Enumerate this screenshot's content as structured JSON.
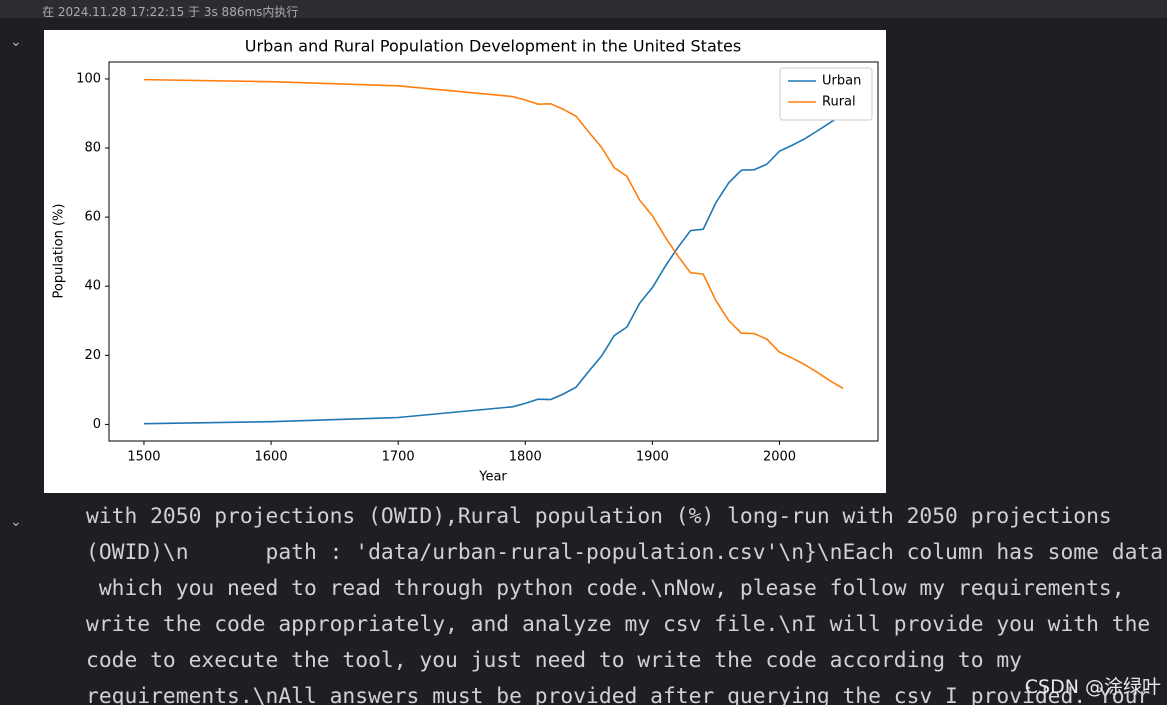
{
  "header": {
    "run_info": "在 2024.11.28 17:22:15 于 3s 886ms内执行"
  },
  "chart_data": {
    "type": "line",
    "title": "Urban and Rural Population Development in the United States",
    "x_label": "Year",
    "y_label": "Population (%)",
    "x": [
      1500,
      1600,
      1700,
      1790,
      1800,
      1810,
      1820,
      1830,
      1840,
      1850,
      1860,
      1870,
      1880,
      1890,
      1900,
      1910,
      1920,
      1930,
      1940,
      1950,
      1960,
      1970,
      1980,
      1990,
      2000,
      2010,
      2020,
      2030,
      2040,
      2050
    ],
    "series": [
      {
        "name": "Urban",
        "color": "#1f77b4",
        "values": [
          0.2,
          0.8,
          2,
          5.1,
          6.1,
          7.3,
          7.2,
          8.8,
          10.8,
          15.4,
          19.8,
          25.7,
          28.2,
          35.1,
          39.6,
          45.7,
          51.2,
          56.1,
          56.5,
          64.2,
          69.9,
          73.6,
          73.7,
          75.3,
          79.1,
          80.8,
          82.7,
          85,
          87.4,
          89.6
        ]
      },
      {
        "name": "Rural",
        "color": "#ff7f0e",
        "values": [
          99.8,
          99.2,
          98,
          94.9,
          93.9,
          92.7,
          92.8,
          91.2,
          89.2,
          84.6,
          80.2,
          74.3,
          71.8,
          64.9,
          60.4,
          54.3,
          48.8,
          43.9,
          43.5,
          35.8,
          30.1,
          26.4,
          26.3,
          24.7,
          20.9,
          19.2,
          17.3,
          15,
          12.6,
          10.4
        ]
      }
    ],
    "xlim": [
      1472.5,
      2077.5
    ],
    "xticks": [
      1500,
      1600,
      1700,
      1800,
      1900,
      2000
    ],
    "ylim": [
      -4.8,
      104.9
    ],
    "yticks": [
      0,
      20,
      40,
      60,
      80,
      100
    ],
    "legend": "upper right",
    "grid": false
  },
  "notebook": {
    "output_lines": [
      "with 2050 projections (OWID),Rural population (%) long-run with 2050 projections",
      "(OWID)\\n      path : 'data/urban-rural-population.csv'\\n}\\nEach column has some data",
      " which you need to read through python code.\\nNow, please follow my requirements,",
      "write the code appropriately, and analyze my csv file.\\nI will provide you with the",
      "code to execute the tool, you just need to write the code according to my",
      "requirements.\\nAll answers must be provided after querying the csv I provided. Your"
    ],
    "watermark": "CSDN @涂绿叶"
  }
}
